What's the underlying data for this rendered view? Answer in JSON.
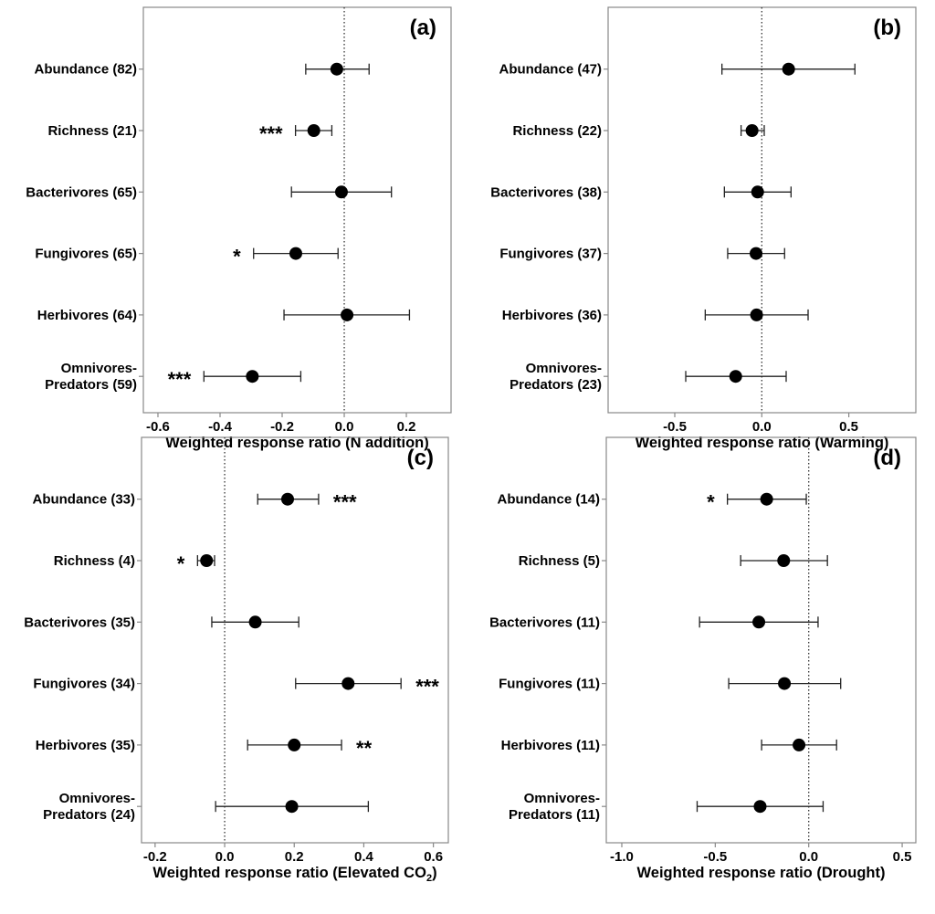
{
  "chart_data": [
    {
      "type": "forest",
      "panel_label": "(a)",
      "xlabel": "Weighted response ratio (N addition)",
      "xlim": [
        -0.647,
        0.344
      ],
      "xticks": [
        -0.6,
        -0.4,
        -0.2,
        0.0,
        0.2
      ],
      "xtick_labels": [
        "-0.6",
        "-0.4",
        "-0.2",
        "0.0",
        "0.2"
      ],
      "reference_line": 0,
      "rows": [
        {
          "label": [
            "Abundance (82)"
          ],
          "mean": -0.024,
          "lower": -0.124,
          "upper": 0.08,
          "sig": "",
          "sig_side": ""
        },
        {
          "label": [
            "Richness (21)"
          ],
          "mean": -0.098,
          "lower": -0.157,
          "upper": -0.04,
          "sig": "***",
          "sig_side": "left"
        },
        {
          "label": [
            "Bacterivores (65)"
          ],
          "mean": -0.009,
          "lower": -0.17,
          "upper": 0.152,
          "sig": "",
          "sig_side": ""
        },
        {
          "label": [
            "Fungivores (65)"
          ],
          "mean": -0.156,
          "lower": -0.292,
          "upper": -0.02,
          "sig": "*",
          "sig_side": "left"
        },
        {
          "label": [
            "Herbivores (64)"
          ],
          "mean": 0.009,
          "lower": -0.194,
          "upper": 0.21,
          "sig": "",
          "sig_side": ""
        },
        {
          "label": [
            "Omnivores-",
            "Predators (59)"
          ],
          "mean": -0.296,
          "lower": -0.452,
          "upper": -0.14,
          "sig": "***",
          "sig_side": "left"
        }
      ]
    },
    {
      "type": "forest",
      "panel_label": "(b)",
      "xlabel": "Weighted response ratio (Warming)",
      "xlim": [
        -0.883,
        0.885
      ],
      "xticks": [
        -0.5,
        0.0,
        0.5
      ],
      "xtick_labels": [
        "-0.5",
        "0.0",
        "0.5"
      ],
      "reference_line": 0,
      "rows": [
        {
          "label": [
            "Abundance  (47)"
          ],
          "mean": 0.154,
          "lower": -0.229,
          "upper": 0.535,
          "sig": "",
          "sig_side": ""
        },
        {
          "label": [
            "Richness (22)"
          ],
          "mean": -0.056,
          "lower": -0.119,
          "upper": 0.014,
          "sig": "",
          "sig_side": ""
        },
        {
          "label": [
            "Bacterivores (38)"
          ],
          "mean": -0.024,
          "lower": -0.215,
          "upper": 0.168,
          "sig": "",
          "sig_side": ""
        },
        {
          "label": [
            "Fungivores (37)"
          ],
          "mean": -0.033,
          "lower": -0.196,
          "upper": 0.131,
          "sig": "",
          "sig_side": ""
        },
        {
          "label": [
            "Herbivores (36)"
          ],
          "mean": -0.03,
          "lower": -0.325,
          "upper": 0.266,
          "sig": "",
          "sig_side": ""
        },
        {
          "label": [
            "Omnivores-",
            "Predators (23)"
          ],
          "mean": -0.15,
          "lower": -0.437,
          "upper": 0.14,
          "sig": "",
          "sig_side": ""
        }
      ]
    },
    {
      "type": "forest",
      "panel_label": "(c)",
      "xlabel": "Weighted response ratio (Elevated CO",
      "xlabel_subscript": "2",
      "xlabel_suffix": ")",
      "xlim": [
        -0.239,
        0.643
      ],
      "xticks": [
        -0.2,
        0.0,
        0.2,
        0.4,
        0.6
      ],
      "xtick_labels": [
        "-0.2",
        "0.0",
        "0.2",
        "0.4",
        "0.6"
      ],
      "reference_line": 0,
      "rows": [
        {
          "label": [
            "Abundance  (33)"
          ],
          "mean": 0.181,
          "lower": 0.095,
          "upper": 0.27,
          "sig": "***",
          "sig_side": "right"
        },
        {
          "label": [
            "Richness (4)"
          ],
          "mean": -0.052,
          "lower": -0.078,
          "upper": -0.029,
          "sig": "*",
          "sig_side": "left"
        },
        {
          "label": [
            "Bacterivores (35)"
          ],
          "mean": 0.088,
          "lower": -0.037,
          "upper": 0.213,
          "sig": "",
          "sig_side": ""
        },
        {
          "label": [
            "Fungivores (34)"
          ],
          "mean": 0.355,
          "lower": 0.204,
          "upper": 0.507,
          "sig": "***",
          "sig_side": "right"
        },
        {
          "label": [
            "Herbivores (35)"
          ],
          "mean": 0.2,
          "lower": 0.066,
          "upper": 0.336,
          "sig": "**",
          "sig_side": "right"
        },
        {
          "label": [
            "Omnivores-",
            "Predators (24)"
          ],
          "mean": 0.193,
          "lower": -0.026,
          "upper": 0.413,
          "sig": "",
          "sig_side": ""
        }
      ]
    },
    {
      "type": "forest",
      "panel_label": "(d)",
      "xlabel": "Weighted response ratio (Drought)",
      "xlim": [
        -1.083,
        0.573
      ],
      "xticks": [
        -1.0,
        -0.5,
        0.0,
        0.5
      ],
      "xtick_labels": [
        "-1.0",
        "-0.5",
        "0.0",
        "0.5"
      ],
      "reference_line": 0,
      "rows": [
        {
          "label": [
            "Abundance  (14)"
          ],
          "mean": -0.225,
          "lower": -0.435,
          "upper": -0.013,
          "sig": "*",
          "sig_side": "left"
        },
        {
          "label": [
            "Richness (5)"
          ],
          "mean": -0.134,
          "lower": -0.364,
          "upper": 0.1,
          "sig": "",
          "sig_side": ""
        },
        {
          "label": [
            "Bacterivores (11)"
          ],
          "mean": -0.267,
          "lower": -0.584,
          "upper": 0.05,
          "sig": "",
          "sig_side": ""
        },
        {
          "label": [
            "Fungivores (11)"
          ],
          "mean": -0.13,
          "lower": -0.428,
          "upper": 0.171,
          "sig": "",
          "sig_side": ""
        },
        {
          "label": [
            "Herbivores (11)"
          ],
          "mean": -0.052,
          "lower": -0.252,
          "upper": 0.149,
          "sig": "",
          "sig_side": ""
        },
        {
          "label": [
            "Omnivores-",
            "Predators (11)"
          ],
          "mean": -0.26,
          "lower": -0.597,
          "upper": 0.077,
          "sig": "",
          "sig_side": ""
        }
      ]
    }
  ],
  "colors": {
    "points": "#000000",
    "frame": "#888888",
    "reference_line": "#333333"
  }
}
